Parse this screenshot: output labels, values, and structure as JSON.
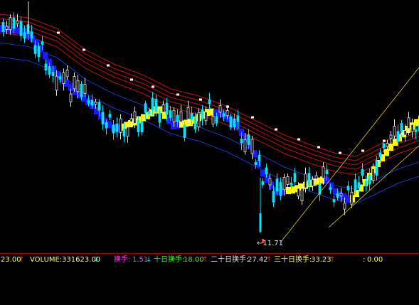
{
  "status_bar": {
    "first_value": "23.00",
    "first_value_arrow": "↑",
    "volume_label": "VOLUME:",
    "volume_value": "331623.00",
    "volume_arrow": "↓",
    "turnover_label": "换手:",
    "turnover_value": "1.51",
    "turnover_arrow": "↓",
    "ten_day_label": "十日换手:",
    "ten_day_value": "18.00",
    "ten_day_arrow": "↑",
    "twenty_day_label": "二十日换手:",
    "twenty_day_value": "27.42",
    "twenty_day_arrow": "↑",
    "thirty_day_label": "三十日换手:",
    "thirty_day_value": "33.23",
    "thirty_day_arrow": "↑",
    "last_label": ":",
    "last_value": "0.00"
  },
  "annotations": {
    "low_price_mark": "←11.71"
  },
  "colors": {
    "background": "#000000",
    "up_candle": "#e8e8e8",
    "down_candle": "#00e5ff",
    "band_line": "#c01010",
    "ribbon_blue": "#1a1aff",
    "ribbon_yellow": "#ffff00",
    "channel_line": "#e0d000",
    "status_yellow": "#ffff66",
    "status_white": "#e6e6e6",
    "status_magenta": "#ff44ff",
    "status_green": "#33ff33",
    "status_red": "#ff3030"
  }
}
